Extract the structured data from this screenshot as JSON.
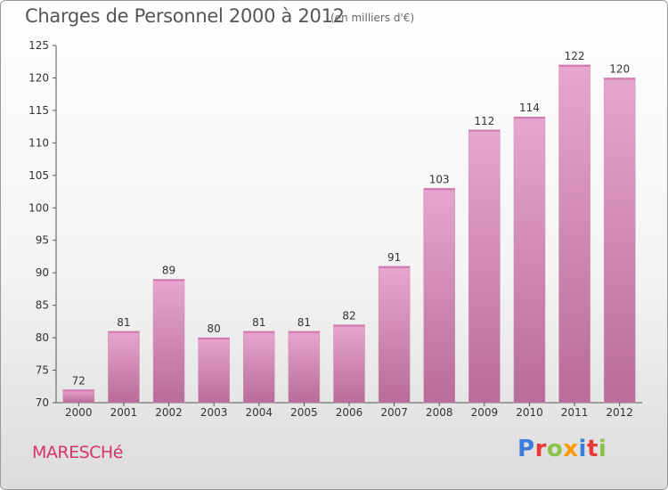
{
  "header": {
    "title": "Charges de Personnel 2000 à 2012",
    "subtitle": "(en milliers d'€)"
  },
  "footer": {
    "commune": "MARESCHé",
    "logo_text": "Proxiti",
    "logo_colors": [
      "#3b7dd8",
      "#e53935",
      "#8bc34a",
      "#ff9800",
      "#3b7dd8",
      "#e53935",
      "#8bc34a"
    ]
  },
  "colors": {
    "bar_light": "#e7a6cf",
    "bar_dark": "#b86c98",
    "axis": "#555555",
    "grid": "#cccccc"
  },
  "chart_data": {
    "type": "bar",
    "title": "Charges de Personnel 2000 à 2012",
    "subtitle": "(en milliers d'€)",
    "xlabel": "",
    "ylabel": "",
    "categories": [
      "2000",
      "2001",
      "2002",
      "2003",
      "2004",
      "2005",
      "2006",
      "2007",
      "2008",
      "2009",
      "2010",
      "2011",
      "2012"
    ],
    "values": [
      72,
      81,
      89,
      80,
      81,
      81,
      82,
      91,
      103,
      112,
      114,
      122,
      120
    ],
    "ylim": [
      70,
      125
    ],
    "yticks": [
      70,
      75,
      80,
      85,
      90,
      95,
      100,
      105,
      110,
      115,
      120,
      125
    ],
    "grid": false
  }
}
